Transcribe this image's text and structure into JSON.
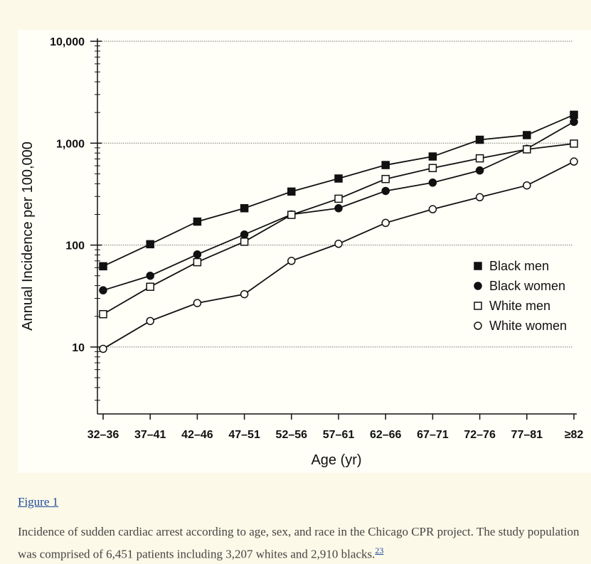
{
  "figure": {
    "link_label": "Figure 1",
    "caption_text": "Incidence of sudden cardiac arrest according to age, sex, and race in the Chicago CPR project. The study population was comprised of 6,451 patients including 3,207 whites and 2,910 blacks.",
    "citation_ref": "23"
  },
  "colors": {
    "page_background": "#fdf9e8",
    "figure_background": "#fffef7",
    "ink": "#111111",
    "link": "#1a4a9c"
  },
  "chart_data": {
    "type": "line",
    "xlabel": "Age (yr)",
    "ylabel": "Annual Incidence per 100,000",
    "yscale": "log",
    "ylim": [
      1,
      10000
    ],
    "grid": "horizontal dotted lines at 10, 100, 1,000, 10,000",
    "y_ticks": [
      {
        "value": 10,
        "label": "10"
      },
      {
        "value": 100,
        "label": "100"
      },
      {
        "value": 1000,
        "label": "1,000"
      },
      {
        "value": 10000,
        "label": "10,000"
      }
    ],
    "categories": [
      "32–36",
      "37–41",
      "42–46",
      "47–51",
      "52–56",
      "57–61",
      "62–66",
      "67–71",
      "72–76",
      "77–81",
      "≥82"
    ],
    "legend_position": "right, lower-middle",
    "series": [
      {
        "name": "Black men",
        "marker": "filled-square",
        "values": [
          62,
          102,
          170,
          230,
          335,
          450,
          610,
          740,
          1080,
          1200,
          1900
        ]
      },
      {
        "name": "Black women",
        "marker": "filled-circle",
        "values": [
          36,
          50,
          81,
          127,
          200,
          230,
          340,
          410,
          540,
          880,
          1620
        ]
      },
      {
        "name": "White men",
        "marker": "open-square",
        "values": [
          21,
          39,
          68,
          108,
          198,
          285,
          445,
          570,
          710,
          870,
          990
        ]
      },
      {
        "name": "White women",
        "marker": "open-circle",
        "values": [
          9.6,
          18,
          27,
          33,
          70,
          103,
          165,
          225,
          295,
          385,
          660
        ]
      }
    ]
  }
}
